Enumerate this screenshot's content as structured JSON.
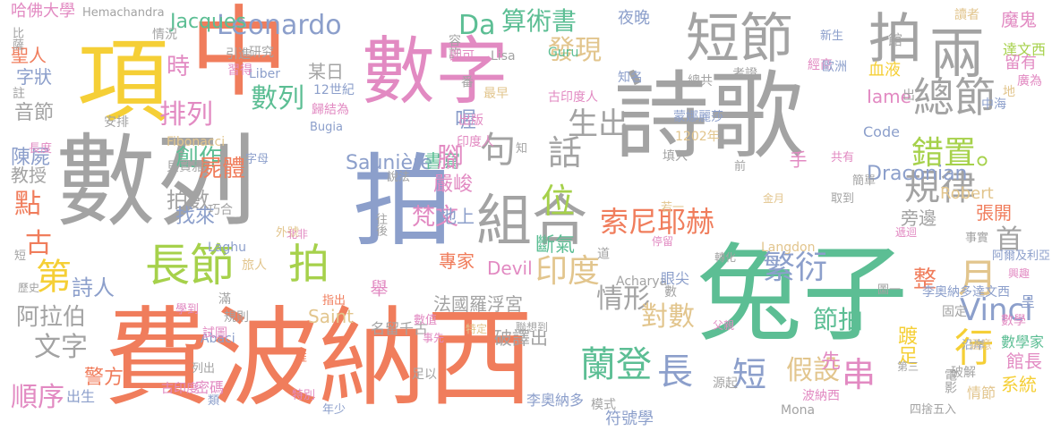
{
  "palette": {
    "orange": "#f07d5c",
    "green": "#5cbe94",
    "gray": "#a3a3a3",
    "blue": "#8c9fcb",
    "pink": "#e28ac2",
    "lime": "#a6d14b",
    "yellow": "#f5cf36",
    "tan": "#e2c58d"
  },
  "words": [
    {
      "t": "費波納西",
      "c": "orange"
    },
    {
      "t": "兔子",
      "c": "green"
    },
    {
      "t": "數列",
      "c": "gray"
    },
    {
      "t": "詩歌",
      "c": "gray"
    },
    {
      "t": "數字",
      "c": "pink"
    },
    {
      "t": "拍",
      "c": "blue"
    },
    {
      "t": "中",
      "c": "orange"
    },
    {
      "t": "項",
      "c": "yellow"
    },
    {
      "t": "短節",
      "c": "gray"
    },
    {
      "t": "拍",
      "c": "gray"
    },
    {
      "t": "兩",
      "c": "gray"
    },
    {
      "t": "組合",
      "c": "gray"
    },
    {
      "t": "長節",
      "c": "lime"
    },
    {
      "t": "拍",
      "c": "lime"
    },
    {
      "t": "Leonardo",
      "c": "blue"
    },
    {
      "t": "Da",
      "c": "green"
    },
    {
      "t": "算術書",
      "c": "green"
    },
    {
      "t": "發現",
      "c": "tan"
    },
    {
      "t": "總節",
      "c": "gray"
    },
    {
      "t": "句",
      "c": "gray"
    },
    {
      "t": "話",
      "c": "gray"
    },
    {
      "t": "位",
      "c": "lime"
    },
    {
      "t": "規律",
      "c": "gray"
    },
    {
      "t": "錯置。",
      "c": "lime"
    },
    {
      "t": "排列",
      "c": "pink"
    },
    {
      "t": "數列",
      "c": "green"
    },
    {
      "t": "生出",
      "c": "gray"
    },
    {
      "t": "索尼耶赫",
      "c": "orange"
    },
    {
      "t": "印度",
      "c": "tan"
    },
    {
      "t": "繁衍",
      "c": "blue"
    },
    {
      "t": "情形",
      "c": "gray"
    },
    {
      "t": "長",
      "c": "blue"
    },
    {
      "t": "短",
      "c": "blue"
    },
    {
      "t": "蘭登",
      "c": "green"
    },
    {
      "t": "對數",
      "c": "tan"
    },
    {
      "t": "假設",
      "c": "tan"
    },
    {
      "t": "串",
      "c": "pink"
    },
    {
      "t": "行",
      "c": "yellow"
    },
    {
      "t": "月",
      "c": "tan"
    },
    {
      "t": "Vinci",
      "c": "blue"
    },
    {
      "t": "節拍",
      "c": "green"
    },
    {
      "t": "首",
      "c": "gray"
    },
    {
      "t": "音節",
      "c": "gray"
    },
    {
      "t": "文字",
      "c": "gray"
    },
    {
      "t": "順序",
      "c": "pink"
    },
    {
      "t": "詩人",
      "c": "blue"
    },
    {
      "t": "第",
      "c": "yellow"
    },
    {
      "t": "古",
      "c": "orange"
    },
    {
      "t": "點",
      "c": "orange"
    },
    {
      "t": "創作",
      "c": "green"
    },
    {
      "t": "拍數",
      "c": "gray"
    },
    {
      "t": "時",
      "c": "pink"
    },
    {
      "t": "Jacques",
      "c": "green"
    },
    {
      "t": "阿拉伯",
      "c": "gray"
    },
    {
      "t": "警方",
      "c": "orange"
    },
    {
      "t": "梵文",
      "c": "pink"
    },
    {
      "t": "屍體",
      "c": "orange"
    },
    {
      "t": "某日",
      "c": "gray"
    },
    {
      "t": "Saunière",
      "c": "blue"
    },
    {
      "t": "書寫",
      "c": "green"
    },
    {
      "t": "嚴峻",
      "c": "pink"
    },
    {
      "t": "夜晚",
      "c": "blue"
    },
    {
      "t": "喔",
      "c": "blue"
    },
    {
      "t": "腳",
      "c": "pink"
    },
    {
      "t": "地上",
      "c": "blue"
    },
    {
      "t": "專家",
      "c": "orange"
    },
    {
      "t": "法國羅浮宮",
      "c": "gray"
    },
    {
      "t": "斷氣",
      "c": "green"
    },
    {
      "t": "Devil",
      "c": "pink"
    },
    {
      "t": "破譯出",
      "c": "gray"
    },
    {
      "t": "Draconian",
      "c": "blue"
    },
    {
      "t": "旁邊",
      "c": "gray"
    },
    {
      "t": "Robert",
      "c": "tan"
    },
    {
      "t": "張開",
      "c": "orange"
    },
    {
      "t": "整",
      "c": "orange"
    },
    {
      "t": "先",
      "c": "pink"
    },
    {
      "t": "館長",
      "c": "pink"
    },
    {
      "t": "系統",
      "c": "yellow"
    },
    {
      "t": "踱足",
      "c": "yellow"
    },
    {
      "t": "哈佛大學",
      "c": "pink"
    },
    {
      "t": "Hemachandra",
      "c": "gray"
    },
    {
      "t": "聖人",
      "c": "orange"
    },
    {
      "t": "字狀",
      "c": "blue"
    },
    {
      "t": "陳屍",
      "c": "blue"
    },
    {
      "t": "教授",
      "c": "gray"
    },
    {
      "t": "魔鬼",
      "c": "pink"
    },
    {
      "t": "達文西",
      "c": "lime"
    },
    {
      "t": "留有",
      "c": "pink"
    },
    {
      "t": "血液",
      "c": "yellow"
    },
    {
      "t": "Iame",
      "c": "pink"
    },
    {
      "t": "Code",
      "c": "blue"
    },
    {
      "t": "手",
      "c": "pink"
    },
    {
      "t": "舉",
      "c": "pink"
    },
    {
      "t": "找來",
      "c": "blue"
    },
    {
      "t": "Saint",
      "c": "tan"
    },
    {
      "t": "Langdon",
      "c": "tan"
    },
    {
      "t": "李奧納多達文西",
      "c": "blue"
    },
    {
      "t": "李奧納多",
      "c": "blue"
    },
    {
      "t": "數學",
      "c": "pink"
    },
    {
      "t": "數學家",
      "c": "green"
    },
    {
      "t": "呈",
      "c": "blue"
    },
    {
      "t": "固定",
      "c": "gray"
    },
    {
      "t": "情節",
      "c": "tan"
    },
    {
      "t": "破解",
      "c": "gray"
    },
    {
      "t": "Mona",
      "c": "gray"
    },
    {
      "t": "模式",
      "c": "gray"
    },
    {
      "t": "符號學",
      "c": "blue"
    },
    {
      "t": "密碼",
      "c": "pink"
    },
    {
      "t": "出生",
      "c": "blue"
    },
    {
      "t": "12世紀",
      "c": "blue"
    },
    {
      "t": "Fibonacci",
      "c": "tan"
    },
    {
      "t": "Abaci",
      "c": "blue"
    },
    {
      "t": "Acharya",
      "c": "gray"
    },
    {
      "t": "Laghu",
      "c": "blue"
    },
    {
      "t": "Bugia",
      "c": "blue"
    },
    {
      "t": "Liber",
      "c": "blue"
    },
    {
      "t": "Lisa",
      "c": "gray"
    },
    {
      "t": "Guru",
      "c": "green"
    },
    {
      "t": "1202年",
      "c": "tan"
    },
    {
      "t": "蒙娜麗莎",
      "c": "blue"
    },
    {
      "t": "印度人",
      "c": "pink"
    },
    {
      "t": "古印度人",
      "c": "pink"
    },
    {
      "t": "出版",
      "c": "pink"
    },
    {
      "t": "最早",
      "c": "tan"
    },
    {
      "t": "知名",
      "c": "blue"
    },
    {
      "t": "總共",
      "c": "gray"
    },
    {
      "t": "番",
      "c": "gray"
    },
    {
      "t": "經商",
      "c": "pink"
    },
    {
      "t": "新生",
      "c": "blue"
    },
    {
      "t": "讀者",
      "c": "tan"
    },
    {
      "t": "館",
      "c": "gray"
    },
    {
      "t": "歐洲",
      "c": "blue"
    },
    {
      "t": "出",
      "c": "gray"
    },
    {
      "t": "中海",
      "c": "blue"
    },
    {
      "t": "地",
      "c": "tan"
    },
    {
      "t": "廣為",
      "c": "pink"
    },
    {
      "t": "填入",
      "c": "gray"
    },
    {
      "t": "考證",
      "c": "gray"
    },
    {
      "t": "情況",
      "c": "gray"
    },
    {
      "t": "研究",
      "c": "gray"
    },
    {
      "t": "引進",
      "c": "gray"
    },
    {
      "t": "習得",
      "c": "pink"
    },
    {
      "t": "容許",
      "c": "gray"
    },
    {
      "t": "即可",
      "c": "pink"
    },
    {
      "t": "比薩",
      "c": "gray"
    },
    {
      "t": "註",
      "c": "gray"
    },
    {
      "t": "歸結為",
      "c": "pink"
    },
    {
      "t": "安排",
      "c": "gray"
    },
    {
      "t": "長度",
      "c": "pink"
    },
    {
      "t": "貝賈雅",
      "c": "gray"
    },
    {
      "t": "字母",
      "c": "blue"
    },
    {
      "t": "巧合",
      "c": "gray"
    },
    {
      "t": "外號",
      "c": "tan"
    },
    {
      "t": "說法",
      "c": "gray"
    },
    {
      "t": "往後",
      "c": "gray"
    },
    {
      "t": "北非",
      "c": "pink"
    },
    {
      "t": "旅人",
      "c": "tan"
    },
    {
      "t": "歷史",
      "c": "gray"
    },
    {
      "t": "短",
      "c": "gray"
    },
    {
      "t": "滿",
      "c": "gray"
    },
    {
      "t": "規則",
      "c": "gray"
    },
    {
      "t": "指出",
      "c": "orange"
    },
    {
      "t": "名留千古",
      "c": "gray"
    },
    {
      "t": "試圖",
      "c": "pink"
    },
    {
      "t": "學到",
      "c": "pink"
    },
    {
      "t": "數值",
      "c": "pink"
    },
    {
      "t": "事先",
      "c": "pink"
    },
    {
      "t": "足以",
      "c": "gray"
    },
    {
      "t": "聯想到",
      "c": "gray"
    },
    {
      "t": "特定",
      "c": "tan"
    },
    {
      "t": "推",
      "c": "orange"
    },
    {
      "t": "列出",
      "c": "gray"
    },
    {
      "t": "古印度",
      "c": "pink"
    },
    {
      "t": "類",
      "c": "blue"
    },
    {
      "t": "特別",
      "c": "pink"
    },
    {
      "t": "年少",
      "c": "blue"
    },
    {
      "t": "知",
      "c": "gray"
    },
    {
      "t": "前",
      "c": "gray"
    },
    {
      "t": "若一",
      "c": "tan"
    },
    {
      "t": "金月",
      "c": "tan"
    },
    {
      "t": "共有",
      "c": "pink"
    },
    {
      "t": "取到",
      "c": "gray"
    },
    {
      "t": "簡單",
      "c": "gray"
    },
    {
      "t": "遞迴",
      "c": "pink"
    },
    {
      "t": "阿爾及利亞",
      "c": "blue"
    },
    {
      "t": "事實",
      "c": "gray"
    },
    {
      "t": "興趣",
      "c": "pink"
    },
    {
      "t": "圖一",
      "c": "gray"
    },
    {
      "t": "轉化",
      "c": "gray"
    },
    {
      "t": "眼尖",
      "c": "blue"
    },
    {
      "t": "停留",
      "c": "pink"
    },
    {
      "t": "道",
      "c": "gray"
    },
    {
      "t": "數",
      "c": "gray"
    },
    {
      "t": "父親",
      "c": "pink"
    },
    {
      "t": "源起",
      "c": "gray"
    },
    {
      "t": "第三",
      "c": "gray"
    },
    {
      "t": "沿岸",
      "c": "blue"
    },
    {
      "t": "電影",
      "c": "gray"
    },
    {
      "t": "涵意",
      "c": "tan"
    },
    {
      "t": "波納西",
      "c": "pink"
    },
    {
      "t": "四捨五入",
      "c": "gray"
    }
  ]
}
